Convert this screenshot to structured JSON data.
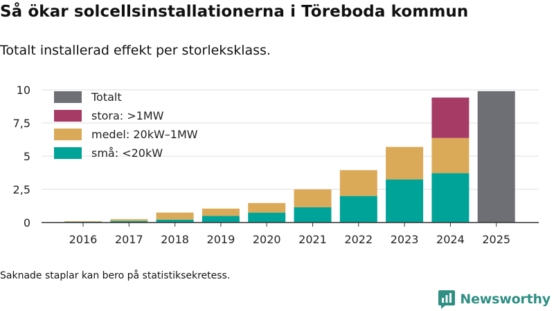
{
  "header": {
    "title": "Så ökar solcellsinstallationerna i Töreboda kommun",
    "subtitle": "Totalt installerad effekt per storleksklass."
  },
  "chart_data": {
    "type": "bar",
    "stacked": true,
    "title": "Så ökar solcellsinstallationerna i Töreboda kommun",
    "subtitle": "Totalt installerad effekt per storleksklass.",
    "xlabel": "",
    "ylabel": "",
    "ylim": [
      0,
      10
    ],
    "yticks": [
      {
        "value": 0,
        "label": "0"
      },
      {
        "value": 2.5,
        "label": "2,5"
      },
      {
        "value": 5,
        "label": "5"
      },
      {
        "value": 7.5,
        "label": "7,5"
      },
      {
        "value": 10,
        "label": "10"
      }
    ],
    "grid": true,
    "legend_position": "top-left",
    "categories": [
      "2016",
      "2017",
      "2018",
      "2019",
      "2020",
      "2021",
      "2022",
      "2023",
      "2024",
      "2025"
    ],
    "series": [
      {
        "name": "små: <20kW",
        "color": "#00a398",
        "values": [
          0.05,
          0.12,
          0.22,
          0.5,
          0.75,
          1.15,
          2.0,
          3.25,
          3.72,
          null
        ]
      },
      {
        "name": "medel: 20kW–1MW",
        "color": "#dbaa58",
        "values": [
          0.05,
          0.13,
          0.53,
          0.55,
          0.72,
          1.35,
          1.95,
          2.45,
          2.65,
          null
        ]
      },
      {
        "name": "stora: >1MW",
        "color": "#a63c66",
        "values": [
          null,
          null,
          null,
          null,
          null,
          null,
          null,
          null,
          3.05,
          null
        ]
      },
      {
        "name": "Totalt",
        "color": "#6e6e75",
        "values": [
          null,
          null,
          null,
          null,
          null,
          null,
          null,
          null,
          null,
          9.9
        ]
      }
    ],
    "legend_order": [
      "Totalt",
      "stora: >1MW",
      "medel: 20kW–1MW",
      "små: <20kW"
    ]
  },
  "footer": {
    "note": "Saknade staplar kan bero på statistiksekretess.",
    "brand": "Newsworthy",
    "brand_color": "#2f8f83"
  }
}
